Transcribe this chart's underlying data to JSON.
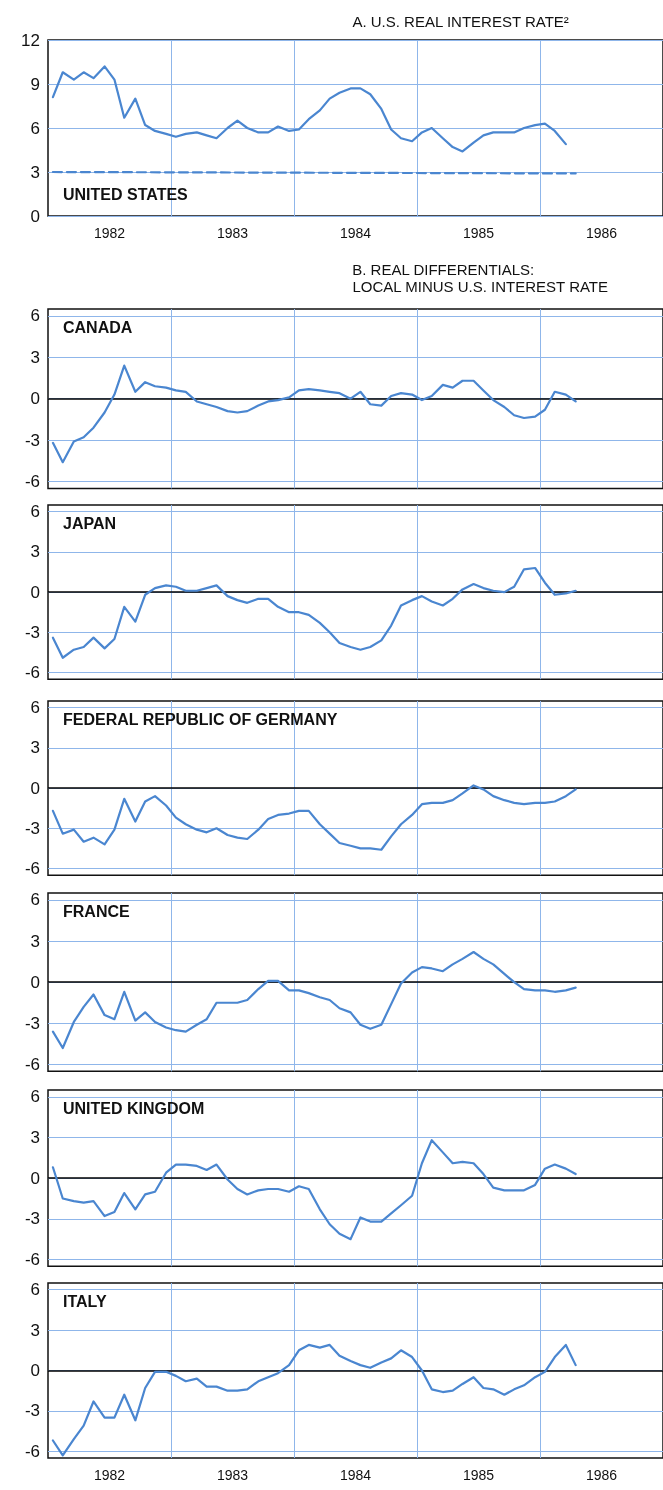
{
  "chart_data": [
    {
      "type": "line",
      "title": "A. U.S. REAL INTEREST RATE²",
      "annotations": [
        "UNITED STATES"
      ],
      "marker": "none",
      "grid": "y",
      "ylim": [
        0,
        12
      ],
      "yticks": [
        0,
        3,
        6,
        9,
        12
      ],
      "xlim": [
        1982,
        1987
      ],
      "xticks": [
        {
          "value": 1982.5,
          "label": "1982"
        },
        {
          "value": 1983.5,
          "label": "1983"
        },
        {
          "value": 1984.5,
          "label": "1984"
        },
        {
          "value": 1985.5,
          "label": "1985"
        },
        {
          "value": 1986.5,
          "label": "1986"
        }
      ],
      "ref_lines": [
        {
          "axis": "x",
          "value": 1983,
          "color": "#8fb6ea"
        },
        {
          "axis": "x",
          "value": 1984,
          "color": "#8fb6ea"
        },
        {
          "axis": "x",
          "value": 1985,
          "color": "#8fb6ea"
        },
        {
          "axis": "x",
          "value": 1986,
          "color": "#8fb6ea"
        }
      ],
      "x": [
        1982.04,
        1982.12,
        1982.21,
        1982.29,
        1982.37,
        1982.46,
        1982.54,
        1982.62,
        1982.71,
        1982.79,
        1982.87,
        1982.96,
        1983.04,
        1983.12,
        1983.21,
        1983.29,
        1983.37,
        1983.46,
        1983.54,
        1983.62,
        1983.71,
        1983.79,
        1983.87,
        1983.96,
        1984.04,
        1984.12,
        1984.21,
        1984.29,
        1984.37,
        1984.46,
        1984.54,
        1984.62,
        1984.71,
        1984.79,
        1984.87,
        1984.96,
        1985.04,
        1985.12,
        1985.21,
        1985.29,
        1985.37,
        1985.46,
        1985.54,
        1985.62,
        1985.71,
        1985.79,
        1985.87,
        1985.96,
        1986.04,
        1986.12,
        1986.21
      ],
      "series": [
        {
          "color": "#4a86d0",
          "values": [
            8.1,
            9.8,
            9.3,
            9.8,
            9.4,
            10.2,
            9.3,
            6.7,
            8.0,
            6.2,
            5.8,
            5.6,
            5.4,
            5.6,
            5.7,
            5.5,
            5.3,
            6.0,
            6.5,
            6.0,
            5.7,
            5.7,
            6.1,
            5.8,
            5.9,
            6.6,
            7.2,
            8.0,
            8.4,
            8.7,
            8.7,
            8.3,
            7.3,
            5.9,
            5.3,
            5.1,
            5.7,
            6.0,
            5.3,
            4.7,
            4.4,
            5.0,
            5.5,
            5.7,
            5.7,
            5.7,
            6.0,
            6.2,
            6.3,
            5.8,
            4.9
          ]
        },
        {
          "color": "#4a86d0",
          "line_style": "dashed",
          "x": [
            1982.04,
            1986.29
          ],
          "values": [
            3.0,
            2.9
          ]
        }
      ]
    },
    {
      "type": "line",
      "title": "B. REAL DIFFERENTIALS:",
      "subtitle": "LOCAL MINUS U.S. INTEREST RATE",
      "annotations": [
        "CANADA"
      ],
      "marker": "none",
      "grid": "y",
      "tick_labels": "y",
      "ylim": [
        -6.5,
        6.5
      ],
      "yticks": [
        -6,
        -3,
        0,
        3,
        6
      ],
      "xlim": [
        1982,
        1987
      ],
      "ref_lines": [
        {
          "axis": "x",
          "value": 1983,
          "color": "#8fb6ea"
        },
        {
          "axis": "x",
          "value": 1984,
          "color": "#8fb6ea"
        },
        {
          "axis": "x",
          "value": 1985,
          "color": "#8fb6ea"
        },
        {
          "axis": "x",
          "value": 1986,
          "color": "#8fb6ea"
        },
        {
          "axis": "y",
          "value": 0,
          "color": "#000000"
        }
      ],
      "x": [
        1982.04,
        1982.12,
        1982.21,
        1982.29,
        1982.37,
        1982.46,
        1982.54,
        1982.62,
        1982.71,
        1982.79,
        1982.87,
        1982.96,
        1983.04,
        1983.12,
        1983.21,
        1983.29,
        1983.37,
        1983.46,
        1983.54,
        1983.62,
        1983.71,
        1983.79,
        1983.87,
        1983.96,
        1984.04,
        1984.12,
        1984.21,
        1984.29,
        1984.37,
        1984.46,
        1984.54,
        1984.62,
        1984.71,
        1984.79,
        1984.87,
        1984.96,
        1985.04,
        1985.12,
        1985.21,
        1985.29,
        1985.37,
        1985.46,
        1985.54,
        1985.62,
        1985.71,
        1985.79,
        1985.87,
        1985.96,
        1986.04,
        1986.12,
        1986.21,
        1986.29
      ],
      "series": [
        {
          "color": "#4a86d0",
          "values": [
            -3.2,
            -4.6,
            -3.1,
            -2.8,
            -2.1,
            -1.0,
            0.3,
            2.4,
            0.5,
            1.2,
            0.9,
            0.8,
            0.6,
            0.5,
            -0.2,
            -0.4,
            -0.6,
            -0.9,
            -1.0,
            -0.9,
            -0.5,
            -0.2,
            -0.1,
            0.1,
            0.6,
            0.7,
            0.6,
            0.5,
            0.4,
            0.0,
            0.5,
            -0.4,
            -0.5,
            0.2,
            0.4,
            0.3,
            -0.1,
            0.2,
            1.0,
            0.8,
            1.3,
            1.3,
            0.6,
            -0.1,
            -0.6,
            -1.2,
            -1.4,
            -1.3,
            -0.8,
            0.5,
            0.3,
            -0.2
          ]
        }
      ]
    },
    {
      "type": "line",
      "annotations": [
        "JAPAN"
      ],
      "marker": "none",
      "grid": "y",
      "tick_labels": "y",
      "ylim": [
        -6.5,
        6.5
      ],
      "yticks": [
        -6,
        -3,
        0,
        3,
        6
      ],
      "xlim": [
        1982,
        1987
      ],
      "ref_lines": [
        {
          "axis": "x",
          "value": 1983,
          "color": "#8fb6ea"
        },
        {
          "axis": "x",
          "value": 1984,
          "color": "#8fb6ea"
        },
        {
          "axis": "x",
          "value": 1985,
          "color": "#8fb6ea"
        },
        {
          "axis": "x",
          "value": 1986,
          "color": "#8fb6ea"
        },
        {
          "axis": "y",
          "value": 0,
          "color": "#000000"
        }
      ],
      "x": [
        1982.04,
        1982.12,
        1982.21,
        1982.29,
        1982.37,
        1982.46,
        1982.54,
        1982.62,
        1982.71,
        1982.79,
        1982.87,
        1982.96,
        1983.04,
        1983.12,
        1983.21,
        1983.29,
        1983.37,
        1983.46,
        1983.54,
        1983.62,
        1983.71,
        1983.79,
        1983.87,
        1983.96,
        1984.04,
        1984.12,
        1984.21,
        1984.29,
        1984.37,
        1984.46,
        1984.54,
        1984.62,
        1984.71,
        1984.79,
        1984.87,
        1984.96,
        1985.04,
        1985.12,
        1985.21,
        1985.29,
        1985.37,
        1985.46,
        1985.54,
        1985.62,
        1985.71,
        1985.79,
        1985.87,
        1985.96,
        1986.04,
        1986.12,
        1986.21,
        1986.29
      ],
      "series": [
        {
          "color": "#4a86d0",
          "values": [
            -3.4,
            -4.9,
            -4.3,
            -4.1,
            -3.4,
            -4.2,
            -3.5,
            -1.1,
            -2.2,
            -0.2,
            0.3,
            0.5,
            0.4,
            0.1,
            0.1,
            0.3,
            0.5,
            -0.3,
            -0.6,
            -0.8,
            -0.5,
            -0.5,
            -1.1,
            -1.5,
            -1.5,
            -1.7,
            -2.3,
            -3.0,
            -3.8,
            -4.1,
            -4.3,
            -4.1,
            -3.6,
            -2.5,
            -1.0,
            -0.6,
            -0.3,
            -0.7,
            -1.0,
            -0.5,
            0.2,
            0.6,
            0.3,
            0.1,
            0.0,
            0.4,
            1.7,
            1.8,
            0.7,
            -0.2,
            -0.1,
            0.1
          ]
        }
      ]
    },
    {
      "type": "line",
      "annotations": [
        "FEDERAL REPUBLIC OF GERMANY"
      ],
      "marker": "none",
      "grid": "y",
      "tick_labels": "y",
      "ylim": [
        -6.5,
        6.5
      ],
      "yticks": [
        -6,
        -3,
        0,
        3,
        6
      ],
      "xlim": [
        1982,
        1987
      ],
      "ref_lines": [
        {
          "axis": "x",
          "value": 1983,
          "color": "#8fb6ea"
        },
        {
          "axis": "x",
          "value": 1984,
          "color": "#8fb6ea"
        },
        {
          "axis": "x",
          "value": 1985,
          "color": "#8fb6ea"
        },
        {
          "axis": "x",
          "value": 1986,
          "color": "#8fb6ea"
        },
        {
          "axis": "y",
          "value": 0,
          "color": "#000000"
        }
      ],
      "x": [
        1982.04,
        1982.12,
        1982.21,
        1982.29,
        1982.37,
        1982.46,
        1982.54,
        1982.62,
        1982.71,
        1982.79,
        1982.87,
        1982.96,
        1983.04,
        1983.12,
        1983.21,
        1983.29,
        1983.37,
        1983.46,
        1983.54,
        1983.62,
        1983.71,
        1983.79,
        1983.87,
        1983.96,
        1984.04,
        1984.12,
        1984.21,
        1984.29,
        1984.37,
        1984.46,
        1984.54,
        1984.62,
        1984.71,
        1984.79,
        1984.87,
        1984.96,
        1985.04,
        1985.12,
        1985.21,
        1985.29,
        1985.37,
        1985.46,
        1985.54,
        1985.62,
        1985.71,
        1985.79,
        1985.87,
        1985.96,
        1986.04,
        1986.12,
        1986.21,
        1986.29
      ],
      "series": [
        {
          "color": "#4a86d0",
          "values": [
            -1.7,
            -3.4,
            -3.1,
            -4.0,
            -3.7,
            -4.2,
            -3.1,
            -0.8,
            -2.5,
            -1.0,
            -0.6,
            -1.3,
            -2.2,
            -2.7,
            -3.1,
            -3.3,
            -3.0,
            -3.5,
            -3.7,
            -3.8,
            -3.1,
            -2.3,
            -2.0,
            -1.9,
            -1.7,
            -1.7,
            -2.7,
            -3.4,
            -4.1,
            -4.3,
            -4.5,
            -4.5,
            -4.6,
            -3.6,
            -2.7,
            -2.0,
            -1.2,
            -1.1,
            -1.1,
            -0.9,
            -0.4,
            0.2,
            -0.1,
            -0.6,
            -0.9,
            -1.1,
            -1.2,
            -1.1,
            -1.1,
            -1.0,
            -0.6,
            -0.1
          ]
        }
      ]
    },
    {
      "type": "line",
      "annotations": [
        "FRANCE"
      ],
      "marker": "none",
      "grid": "y",
      "tick_labels": "y",
      "ylim": [
        -6.5,
        6.5
      ],
      "yticks": [
        -6,
        -3,
        0,
        3,
        6
      ],
      "xlim": [
        1982,
        1987
      ],
      "ref_lines": [
        {
          "axis": "x",
          "value": 1983,
          "color": "#8fb6ea"
        },
        {
          "axis": "x",
          "value": 1984,
          "color": "#8fb6ea"
        },
        {
          "axis": "x",
          "value": 1985,
          "color": "#8fb6ea"
        },
        {
          "axis": "x",
          "value": 1986,
          "color": "#8fb6ea"
        },
        {
          "axis": "y",
          "value": 0,
          "color": "#000000"
        }
      ],
      "x": [
        1982.04,
        1982.12,
        1982.21,
        1982.29,
        1982.37,
        1982.46,
        1982.54,
        1982.62,
        1982.71,
        1982.79,
        1982.87,
        1982.96,
        1983.04,
        1983.12,
        1983.21,
        1983.29,
        1983.37,
        1983.46,
        1983.54,
        1983.62,
        1983.71,
        1983.79,
        1983.87,
        1983.96,
        1984.04,
        1984.12,
        1984.21,
        1984.29,
        1984.37,
        1984.46,
        1984.54,
        1984.62,
        1984.71,
        1984.79,
        1984.87,
        1984.96,
        1985.04,
        1985.12,
        1985.21,
        1985.29,
        1985.37,
        1985.46,
        1985.54,
        1985.62,
        1985.71,
        1985.79,
        1985.87,
        1985.96,
        1986.04,
        1986.12,
        1986.21,
        1986.29
      ],
      "series": [
        {
          "color": "#4a86d0",
          "values": [
            -3.6,
            -4.8,
            -2.9,
            -1.8,
            -0.9,
            -2.4,
            -2.7,
            -0.7,
            -2.8,
            -2.2,
            -2.9,
            -3.3,
            -3.5,
            -3.6,
            -3.1,
            -2.7,
            -1.5,
            -1.5,
            -1.5,
            -1.3,
            -0.5,
            0.1,
            0.1,
            -0.6,
            -0.6,
            -0.8,
            -1.1,
            -1.3,
            -1.9,
            -2.2,
            -3.1,
            -3.4,
            -3.1,
            -1.6,
            -0.1,
            0.7,
            1.1,
            1.0,
            0.8,
            1.3,
            1.7,
            2.2,
            1.7,
            1.3,
            0.6,
            0.0,
            -0.5,
            -0.6,
            -0.6,
            -0.7,
            -0.6,
            -0.4
          ]
        }
      ]
    },
    {
      "type": "line",
      "annotations": [
        "UNITED KINGDOM"
      ],
      "marker": "none",
      "grid": "y",
      "tick_labels": "y",
      "ylim": [
        -6.5,
        6.5
      ],
      "yticks": [
        -6,
        -3,
        0,
        3,
        6
      ],
      "xlim": [
        1982,
        1987
      ],
      "ref_lines": [
        {
          "axis": "x",
          "value": 1983,
          "color": "#8fb6ea"
        },
        {
          "axis": "x",
          "value": 1984,
          "color": "#8fb6ea"
        },
        {
          "axis": "x",
          "value": 1985,
          "color": "#8fb6ea"
        },
        {
          "axis": "x",
          "value": 1986,
          "color": "#8fb6ea"
        },
        {
          "axis": "y",
          "value": 0,
          "color": "#000000"
        }
      ],
      "x": [
        1982.04,
        1982.12,
        1982.21,
        1982.29,
        1982.37,
        1982.46,
        1982.54,
        1982.62,
        1982.71,
        1982.79,
        1982.87,
        1982.96,
        1983.04,
        1983.12,
        1983.21,
        1983.29,
        1983.37,
        1983.46,
        1983.54,
        1983.62,
        1983.71,
        1983.79,
        1983.87,
        1983.96,
        1984.04,
        1984.12,
        1984.21,
        1984.29,
        1984.37,
        1984.46,
        1984.54,
        1984.62,
        1984.71,
        1984.79,
        1984.87,
        1984.96,
        1985.04,
        1985.12,
        1985.21,
        1985.29,
        1985.37,
        1985.46,
        1985.54,
        1985.62,
        1985.71,
        1985.79,
        1985.87,
        1985.96,
        1986.04,
        1986.12,
        1986.21,
        1986.29
      ],
      "series": [
        {
          "color": "#4a86d0",
          "values": [
            0.8,
            -1.5,
            -1.7,
            -1.8,
            -1.7,
            -2.8,
            -2.5,
            -1.1,
            -2.3,
            -1.2,
            -1.0,
            0.4,
            1.0,
            1.0,
            0.9,
            0.6,
            1.0,
            -0.1,
            -0.8,
            -1.2,
            -0.9,
            -0.8,
            -0.8,
            -1.0,
            -0.6,
            -0.8,
            -2.3,
            -3.4,
            -4.1,
            -4.5,
            -2.9,
            -3.2,
            -3.2,
            -2.6,
            -2.0,
            -1.3,
            1.1,
            2.8,
            1.9,
            1.1,
            1.2,
            1.1,
            0.3,
            -0.7,
            -0.9,
            -0.9,
            -0.9,
            -0.5,
            0.7,
            1.0,
            0.7,
            0.3
          ]
        }
      ]
    },
    {
      "type": "line",
      "annotations": [
        "ITALY"
      ],
      "marker": "none",
      "grid": "y",
      "ylim": [
        -6.5,
        6.5
      ],
      "yticks": [
        -6,
        -3,
        0,
        3,
        6
      ],
      "xlim": [
        1982,
        1987
      ],
      "xticks": [
        {
          "value": 1982.5,
          "label": "1982"
        },
        {
          "value": 1983.5,
          "label": "1983"
        },
        {
          "value": 1984.5,
          "label": "1984"
        },
        {
          "value": 1985.5,
          "label": "1985"
        },
        {
          "value": 1986.5,
          "label": "1986"
        }
      ],
      "ref_lines": [
        {
          "axis": "x",
          "value": 1983,
          "color": "#8fb6ea"
        },
        {
          "axis": "x",
          "value": 1984,
          "color": "#8fb6ea"
        },
        {
          "axis": "x",
          "value": 1985,
          "color": "#8fb6ea"
        },
        {
          "axis": "x",
          "value": 1986,
          "color": "#8fb6ea"
        },
        {
          "axis": "y",
          "value": 0,
          "color": "#000000"
        }
      ],
      "x": [
        1982.04,
        1982.12,
        1982.21,
        1982.29,
        1982.37,
        1982.46,
        1982.54,
        1982.62,
        1982.71,
        1982.79,
        1982.87,
        1982.96,
        1983.04,
        1983.12,
        1983.21,
        1983.29,
        1983.37,
        1983.46,
        1983.54,
        1983.62,
        1983.71,
        1983.79,
        1983.87,
        1983.96,
        1984.04,
        1984.12,
        1984.21,
        1984.29,
        1984.37,
        1984.46,
        1984.54,
        1984.62,
        1984.71,
        1984.79,
        1984.87,
        1984.96,
        1985.04,
        1985.12,
        1985.21,
        1985.29,
        1985.37,
        1985.46,
        1985.54,
        1985.62,
        1985.71,
        1985.79,
        1985.87,
        1985.96,
        1986.04,
        1986.12,
        1986.21,
        1986.29
      ],
      "series": [
        {
          "color": "#4a86d0",
          "values": [
            -5.2,
            -6.3,
            -5.1,
            -4.1,
            -2.3,
            -3.5,
            -3.5,
            -1.8,
            -3.7,
            -1.3,
            -0.1,
            -0.1,
            -0.4,
            -0.8,
            -0.6,
            -1.2,
            -1.2,
            -1.5,
            -1.5,
            -1.4,
            -0.8,
            -0.5,
            -0.2,
            0.4,
            1.5,
            1.9,
            1.7,
            1.9,
            1.1,
            0.7,
            0.4,
            0.2,
            0.6,
            0.9,
            1.5,
            1.0,
            0.0,
            -1.4,
            -1.6,
            -1.5,
            -1.0,
            -0.5,
            -1.3,
            -1.4,
            -1.8,
            -1.4,
            -1.1,
            -0.5,
            -0.1,
            1.0,
            1.9,
            0.4
          ]
        }
      ]
    }
  ]
}
